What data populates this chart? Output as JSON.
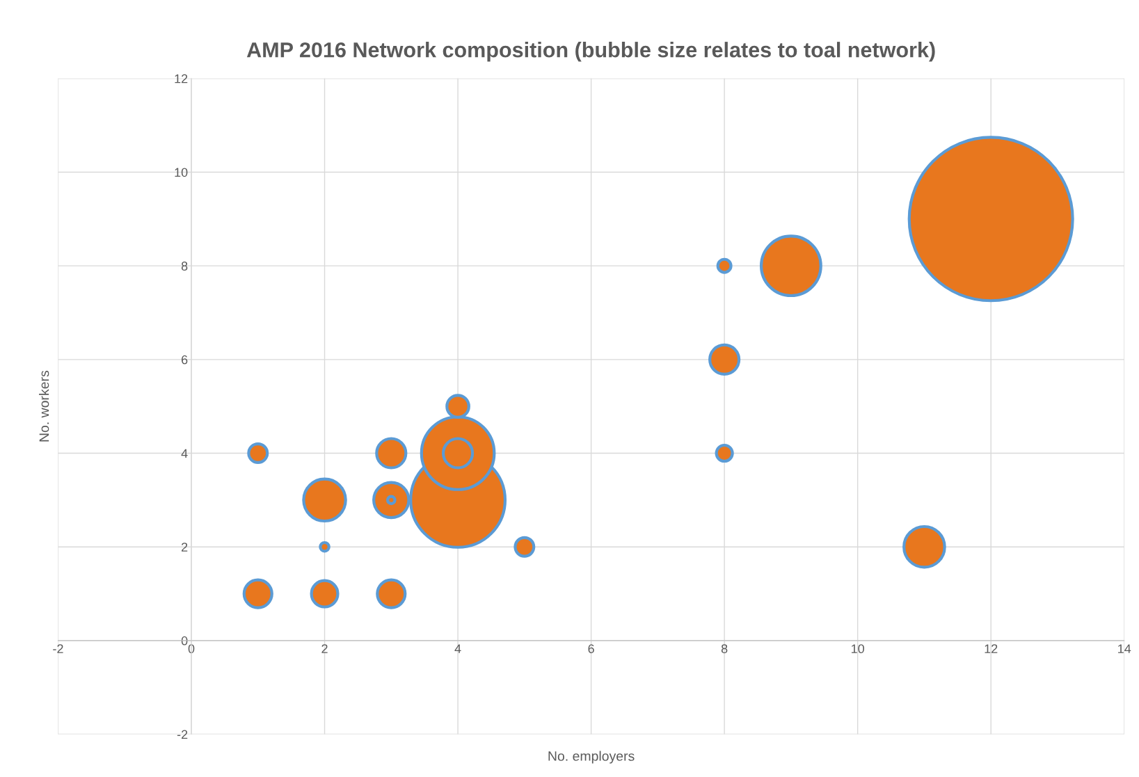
{
  "chart_data": {
    "type": "bubble",
    "title": "AMP 2016 Network composition (bubble size relates to toal network)",
    "xlabel": "No. employers",
    "ylabel": "No. workers",
    "x": [
      1,
      1,
      2,
      2,
      2,
      3,
      3,
      3,
      3,
      4,
      4,
      4,
      4,
      5,
      8,
      8,
      8,
      9,
      11,
      12
    ],
    "values": [
      4,
      1,
      3,
      2,
      1,
      4,
      3,
      3,
      1,
      5,
      3,
      4,
      4,
      2,
      8,
      6,
      4,
      8,
      2,
      9
    ],
    "sizes": [
      0.013,
      0.029,
      0.066,
      0.0028,
      0.026,
      0.032,
      0.002,
      0.046,
      0.029,
      0.018,
      0.334,
      0.032,
      0.198,
      0.013,
      0.0064,
      0.032,
      0.0096,
      0.133,
      0.062,
      1
    ],
    "color": "#e8771e",
    "xlim": [
      -2,
      14
    ],
    "xticks": [
      -2,
      0,
      2,
      4,
      6,
      8,
      10,
      12,
      14
    ],
    "ylim": [
      -2,
      12
    ],
    "yticks": [
      -2,
      0,
      2,
      4,
      6,
      8,
      10,
      12
    ],
    "grid": true
  }
}
